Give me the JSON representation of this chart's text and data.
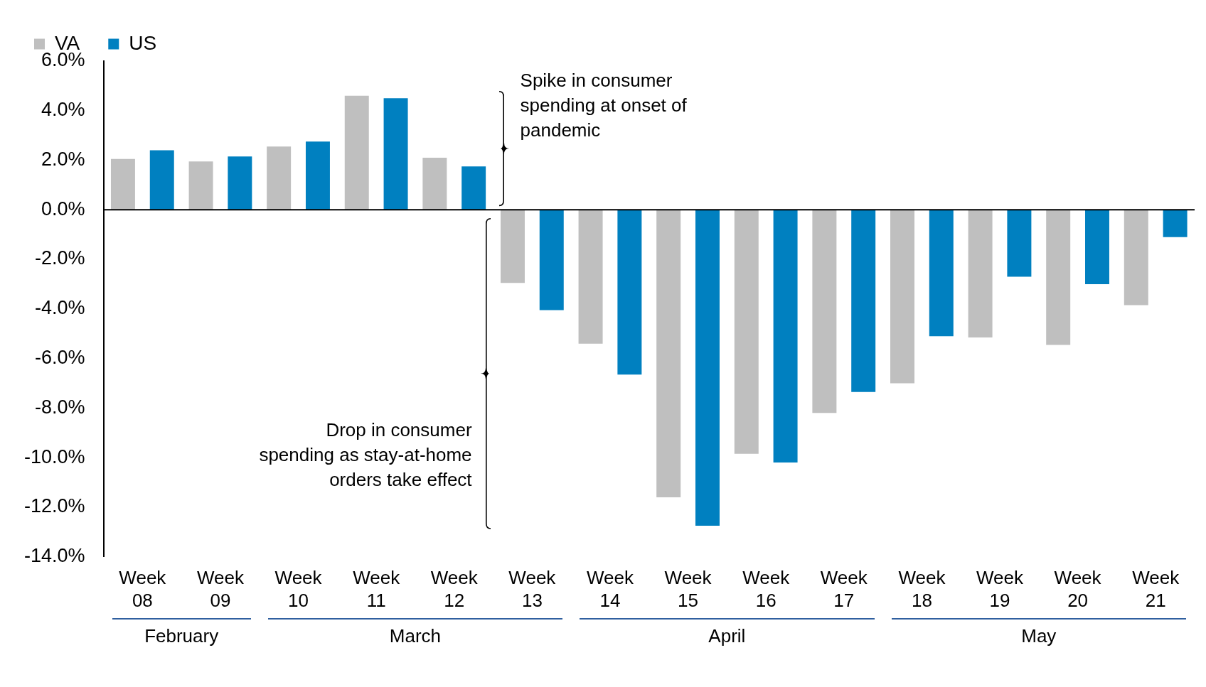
{
  "chart_data": {
    "type": "bar",
    "categories": [
      "Week 08",
      "Week 09",
      "Week 10",
      "Week 11",
      "Week 12",
      "Week 13",
      "Week 14",
      "Week 15",
      "Week 16",
      "Week 17",
      "Week 18",
      "Week 19",
      "Week 20",
      "Week 21"
    ],
    "series": [
      {
        "name": "VA",
        "color": "#bfbfbf",
        "values": [
          2.05,
          1.95,
          2.55,
          4.6,
          2.1,
          -2.95,
          -5.4,
          -11.6,
          -9.85,
          -8.2,
          -7.0,
          -5.15,
          -5.45,
          -3.85
        ]
      },
      {
        "name": "US",
        "color": "#0080c0",
        "values": [
          2.4,
          2.15,
          2.75,
          4.5,
          1.75,
          -4.05,
          -6.65,
          -12.75,
          -10.2,
          -7.35,
          -5.1,
          -2.7,
          -3.0,
          -1.1
        ]
      }
    ],
    "ylim": [
      -14,
      6
    ],
    "yticks": [
      {
        "value": -14,
        "label": "-14.0%"
      },
      {
        "value": -12,
        "label": "-12.0%"
      },
      {
        "value": -10,
        "label": "-10.0%"
      },
      {
        "value": -8,
        "label": "-8.0%"
      },
      {
        "value": -6,
        "label": "-6.0%"
      },
      {
        "value": -4,
        "label": "-4.0%"
      },
      {
        "value": -2,
        "label": "-2.0%"
      },
      {
        "value": 0,
        "label": "0.0%"
      },
      {
        "value": 2,
        "label": "2.0%"
      },
      {
        "value": 4,
        "label": "4.0%"
      },
      {
        "value": 6,
        "label": "6.0%"
      }
    ],
    "grid": false,
    "ref_lines": [
      {
        "axis": "y",
        "value": 0,
        "color": "#000000"
      }
    ],
    "legend": "top left",
    "annotations": [
      "Spike in consumer spending at onset of pandemic",
      "Drop in consumer spending as stay-at-home orders take effect",
      "February",
      "March",
      "April",
      "May"
    ]
  }
}
